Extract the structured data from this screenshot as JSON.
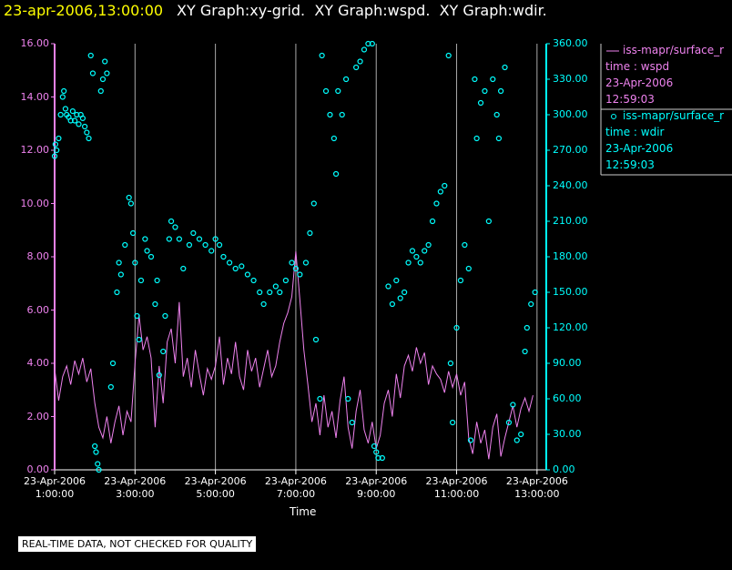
{
  "chart_data": {
    "type": "xy",
    "timestamp": "23-apr-2006,13:00:00",
    "title": "XY Graph:xy-grid.  XY Graph:wspd.  XY Graph:wdir.",
    "xlabel": "Time",
    "note": "REAL-TIME DATA, NOT CHECKED FOR QUALITY",
    "grid": true,
    "xlim": [
      1,
      13.23
    ],
    "xticks": [
      {
        "value": 1,
        "label": "23-Apr-2006\n1:00:00"
      },
      {
        "value": 3,
        "label": "23-Apr-2006\n3:00:00"
      },
      {
        "value": 5,
        "label": "23-Apr-2006\n5:00:00"
      },
      {
        "value": 7,
        "label": "23-Apr-2006\n7:00:00"
      },
      {
        "value": 9,
        "label": "23-Apr-2006\n9:00:00"
      },
      {
        "value": 11,
        "label": "23-Apr-2006\n11:00:00"
      },
      {
        "value": 13,
        "label": "23-Apr-2006\n13:00:00"
      }
    ],
    "ylim": [
      0,
      16
    ],
    "yticks": [
      {
        "value": 0,
        "label": "0.00"
      },
      {
        "value": 2,
        "label": "2.00"
      },
      {
        "value": 4,
        "label": "4.00"
      },
      {
        "value": 6,
        "label": "6.00"
      },
      {
        "value": 8,
        "label": "8.00"
      },
      {
        "value": 10,
        "label": "10.00"
      },
      {
        "value": 12,
        "label": "12.00"
      },
      {
        "value": 14,
        "label": "14.00"
      },
      {
        "value": 16,
        "label": "16.00"
      }
    ],
    "y2lim": [
      0,
      360
    ],
    "y2ticks": [
      {
        "value": 0,
        "label": "0.00"
      },
      {
        "value": 30,
        "label": "30.00"
      },
      {
        "value": 60,
        "label": "60.00"
      },
      {
        "value": 90,
        "label": "90.00"
      },
      {
        "value": 120,
        "label": "120.00"
      },
      {
        "value": 150,
        "label": "150.00"
      },
      {
        "value": 180,
        "label": "180.00"
      },
      {
        "value": 210,
        "label": "210.00"
      },
      {
        "value": 240,
        "label": "240.00"
      },
      {
        "value": 270,
        "label": "270.00"
      },
      {
        "value": 300,
        "label": "300.00"
      },
      {
        "value": 330,
        "label": "330.00"
      },
      {
        "value": 360,
        "label": "360.00"
      }
    ],
    "series": [
      {
        "name": "iss-mapr/surface_r",
        "legend_lines": [
          "time : wspd",
          "23-Apr-2006",
          "12:59:03"
        ],
        "type": "line",
        "color": "#ee82ee",
        "x": [
          1,
          1.1,
          1.2,
          1.3,
          1.4,
          1.5,
          1.6,
          1.7,
          1.8,
          1.9,
          2,
          2.1,
          2.2,
          2.3,
          2.4,
          2.5,
          2.6,
          2.7,
          2.8,
          2.9,
          3,
          3.1,
          3.2,
          3.3,
          3.4,
          3.5,
          3.6,
          3.7,
          3.8,
          3.9,
          4,
          4.1,
          4.2,
          4.3,
          4.4,
          4.5,
          4.6,
          4.7,
          4.8,
          4.9,
          5,
          5.1,
          5.2,
          5.3,
          5.4,
          5.5,
          5.6,
          5.7,
          5.8,
          5.9,
          6,
          6.1,
          6.2,
          6.3,
          6.4,
          6.5,
          6.6,
          6.7,
          6.8,
          6.9,
          7,
          7.1,
          7.2,
          7.3,
          7.4,
          7.5,
          7.6,
          7.7,
          7.8,
          7.9,
          8,
          8.1,
          8.2,
          8.3,
          8.4,
          8.5,
          8.6,
          8.7,
          8.8,
          8.9,
          9,
          9.1,
          9.2,
          9.3,
          9.4,
          9.5,
          9.6,
          9.7,
          9.8,
          9.9,
          10,
          10.1,
          10.2,
          10.3,
          10.4,
          10.5,
          10.6,
          10.7,
          10.8,
          10.9,
          11,
          11.1,
          11.2,
          11.3,
          11.4,
          11.5,
          11.6,
          11.7,
          11.8,
          11.9,
          12,
          12.1,
          12.2,
          12.3,
          12.4,
          12.5,
          12.6,
          12.7,
          12.8,
          12.9
        ],
        "values": [
          3.8,
          2.6,
          3.5,
          3.9,
          3.2,
          4.1,
          3.6,
          4.2,
          3.3,
          3.8,
          2.5,
          1.6,
          1.2,
          2.0,
          1.0,
          1.8,
          2.4,
          1.3,
          2.2,
          1.8,
          4.0,
          5.8,
          4.5,
          5.0,
          4.2,
          1.6,
          3.9,
          2.5,
          4.8,
          5.3,
          4.0,
          6.3,
          3.5,
          4.2,
          3.1,
          4.5,
          3.6,
          2.8,
          3.8,
          3.4,
          3.9,
          5.0,
          3.2,
          4.2,
          3.6,
          4.8,
          3.5,
          3.0,
          4.5,
          3.7,
          4.2,
          3.1,
          3.8,
          4.5,
          3.5,
          3.9,
          4.8,
          5.5,
          5.9,
          6.5,
          8.2,
          6.4,
          4.5,
          3.2,
          1.8,
          2.5,
          1.3,
          2.8,
          1.6,
          2.2,
          1.2,
          2.6,
          3.5,
          1.6,
          0.8,
          2.2,
          3.0,
          1.5,
          1.0,
          1.8,
          0.8,
          1.3,
          2.5,
          3.0,
          2.0,
          3.6,
          2.7,
          3.9,
          4.3,
          3.7,
          4.6,
          4.0,
          4.4,
          3.2,
          3.9,
          3.6,
          3.4,
          2.9,
          3.7,
          3.1,
          3.6,
          2.8,
          3.3,
          1.2,
          0.6,
          1.8,
          1.0,
          1.5,
          0.4,
          1.6,
          2.1,
          0.5,
          1.2,
          1.8,
          2.4,
          1.6,
          2.3,
          2.7,
          2.2,
          2.8
        ]
      },
      {
        "name": "iss-mapr/surface_r",
        "legend_lines": [
          "time : wdir",
          "23-Apr-2006",
          "12:59:03"
        ],
        "type": "scatter",
        "axis": "y2",
        "color": "#00ffff",
        "x": [
          1,
          1.02,
          1.05,
          1.1,
          1.15,
          1.2,
          1.23,
          1.27,
          1.3,
          1.35,
          1.4,
          1.45,
          1.5,
          1.55,
          1.6,
          1.65,
          1.7,
          1.75,
          1.8,
          1.85,
          1.9,
          1.95,
          2,
          2.03,
          2.07,
          2.1,
          2.15,
          2.2,
          2.25,
          2.3,
          2.4,
          2.45,
          2.55,
          2.6,
          2.65,
          2.75,
          2.85,
          2.9,
          2.95,
          3,
          3.05,
          3.1,
          3.15,
          3.25,
          3.3,
          3.4,
          3.5,
          3.55,
          3.6,
          3.7,
          3.75,
          3.85,
          3.9,
          4,
          4.1,
          4.2,
          4.35,
          4.45,
          4.6,
          4.75,
          4.9,
          5,
          5.1,
          5.2,
          5.35,
          5.5,
          5.65,
          5.8,
          5.95,
          6.1,
          6.2,
          6.35,
          6.5,
          6.6,
          6.75,
          6.9,
          7,
          7.1,
          7.25,
          7.35,
          7.45,
          7.5,
          7.6,
          7.65,
          7.75,
          7.85,
          7.95,
          8,
          8.05,
          8.15,
          8.25,
          8.3,
          8.4,
          8.5,
          8.6,
          8.7,
          8.8,
          8.9,
          8.95,
          9,
          9.05,
          9.15,
          9.3,
          9.4,
          9.5,
          9.6,
          9.7,
          9.8,
          9.9,
          10,
          10.1,
          10.2,
          10.3,
          10.4,
          10.5,
          10.6,
          10.7,
          10.8,
          10.85,
          10.9,
          11,
          11.1,
          11.2,
          11.3,
          11.35,
          11.45,
          11.5,
          11.6,
          11.7,
          11.8,
          11.9,
          12,
          12.05,
          12.1,
          12.2,
          12.3,
          12.4,
          12.5,
          12.6,
          12.7,
          12.75,
          12.85,
          12.95
        ],
        "values": [
          265,
          275,
          270,
          280,
          300,
          315,
          320,
          305,
          300,
          298,
          295,
          303,
          295,
          300,
          292,
          300,
          297,
          290,
          285,
          280,
          350,
          335,
          20,
          15,
          5,
          0,
          320,
          330,
          345,
          335,
          70,
          90,
          150,
          175,
          165,
          190,
          230,
          225,
          200,
          175,
          130,
          110,
          160,
          195,
          185,
          180,
          140,
          160,
          80,
          100,
          130,
          195,
          210,
          205,
          195,
          170,
          190,
          200,
          195,
          190,
          185,
          195,
          190,
          180,
          175,
          170,
          172,
          165,
          160,
          150,
          140,
          150,
          155,
          150,
          160,
          175,
          170,
          165,
          175,
          200,
          225,
          110,
          60,
          350,
          320,
          300,
          280,
          250,
          320,
          300,
          330,
          60,
          40,
          340,
          345,
          355,
          360,
          360,
          20,
          15,
          10,
          10,
          155,
          140,
          160,
          145,
          150,
          175,
          185,
          180,
          175,
          185,
          190,
          210,
          225,
          235,
          240,
          350,
          90,
          40,
          120,
          160,
          190,
          170,
          25,
          330,
          280,
          310,
          320,
          210,
          330,
          300,
          280,
          320,
          340,
          40,
          55,
          25,
          30,
          100,
          120,
          140,
          150
        ]
      }
    ]
  }
}
